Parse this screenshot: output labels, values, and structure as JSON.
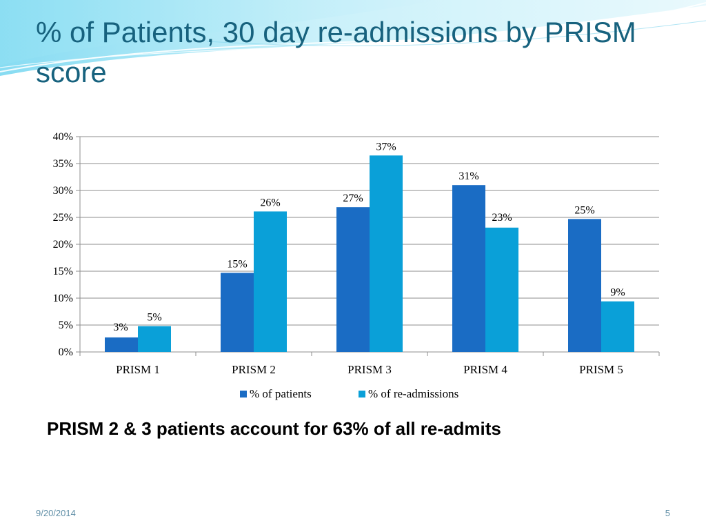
{
  "slide": {
    "title": "% of Patients, 30 day re-admissions by PRISM score",
    "caption": "PRISM 2 & 3 patients account for 63% of all re-admits",
    "footer_date": "9/20/2014",
    "page_number": "5"
  },
  "colors": {
    "title": "#17627e",
    "series_patients": "#1a6cc4",
    "series_readmissions": "#0aa0d8",
    "gridline": "#8c8c8c"
  },
  "chart_data": {
    "type": "bar",
    "categories": [
      "PRISM 1",
      "PRISM 2",
      "PRISM 3",
      "PRISM 4",
      "PRISM 5"
    ],
    "series": [
      {
        "name": "% of patients",
        "values": [
          2.7,
          14.7,
          26.9,
          31.0,
          24.7
        ],
        "labels": [
          "3%",
          "15%",
          "27%",
          "31%",
          "25%"
        ]
      },
      {
        "name": "% of re-admissions",
        "values": [
          4.8,
          26.1,
          36.5,
          23.1,
          9.4
        ],
        "labels": [
          "5%",
          "26%",
          "37%",
          "23%",
          "9%"
        ]
      }
    ],
    "y_ticks": [
      "0%",
      "5%",
      "10%",
      "15%",
      "20%",
      "25%",
      "30%",
      "35%",
      "40%"
    ],
    "ylim": [
      0,
      40
    ],
    "grid": true,
    "legend_position": "bottom"
  }
}
